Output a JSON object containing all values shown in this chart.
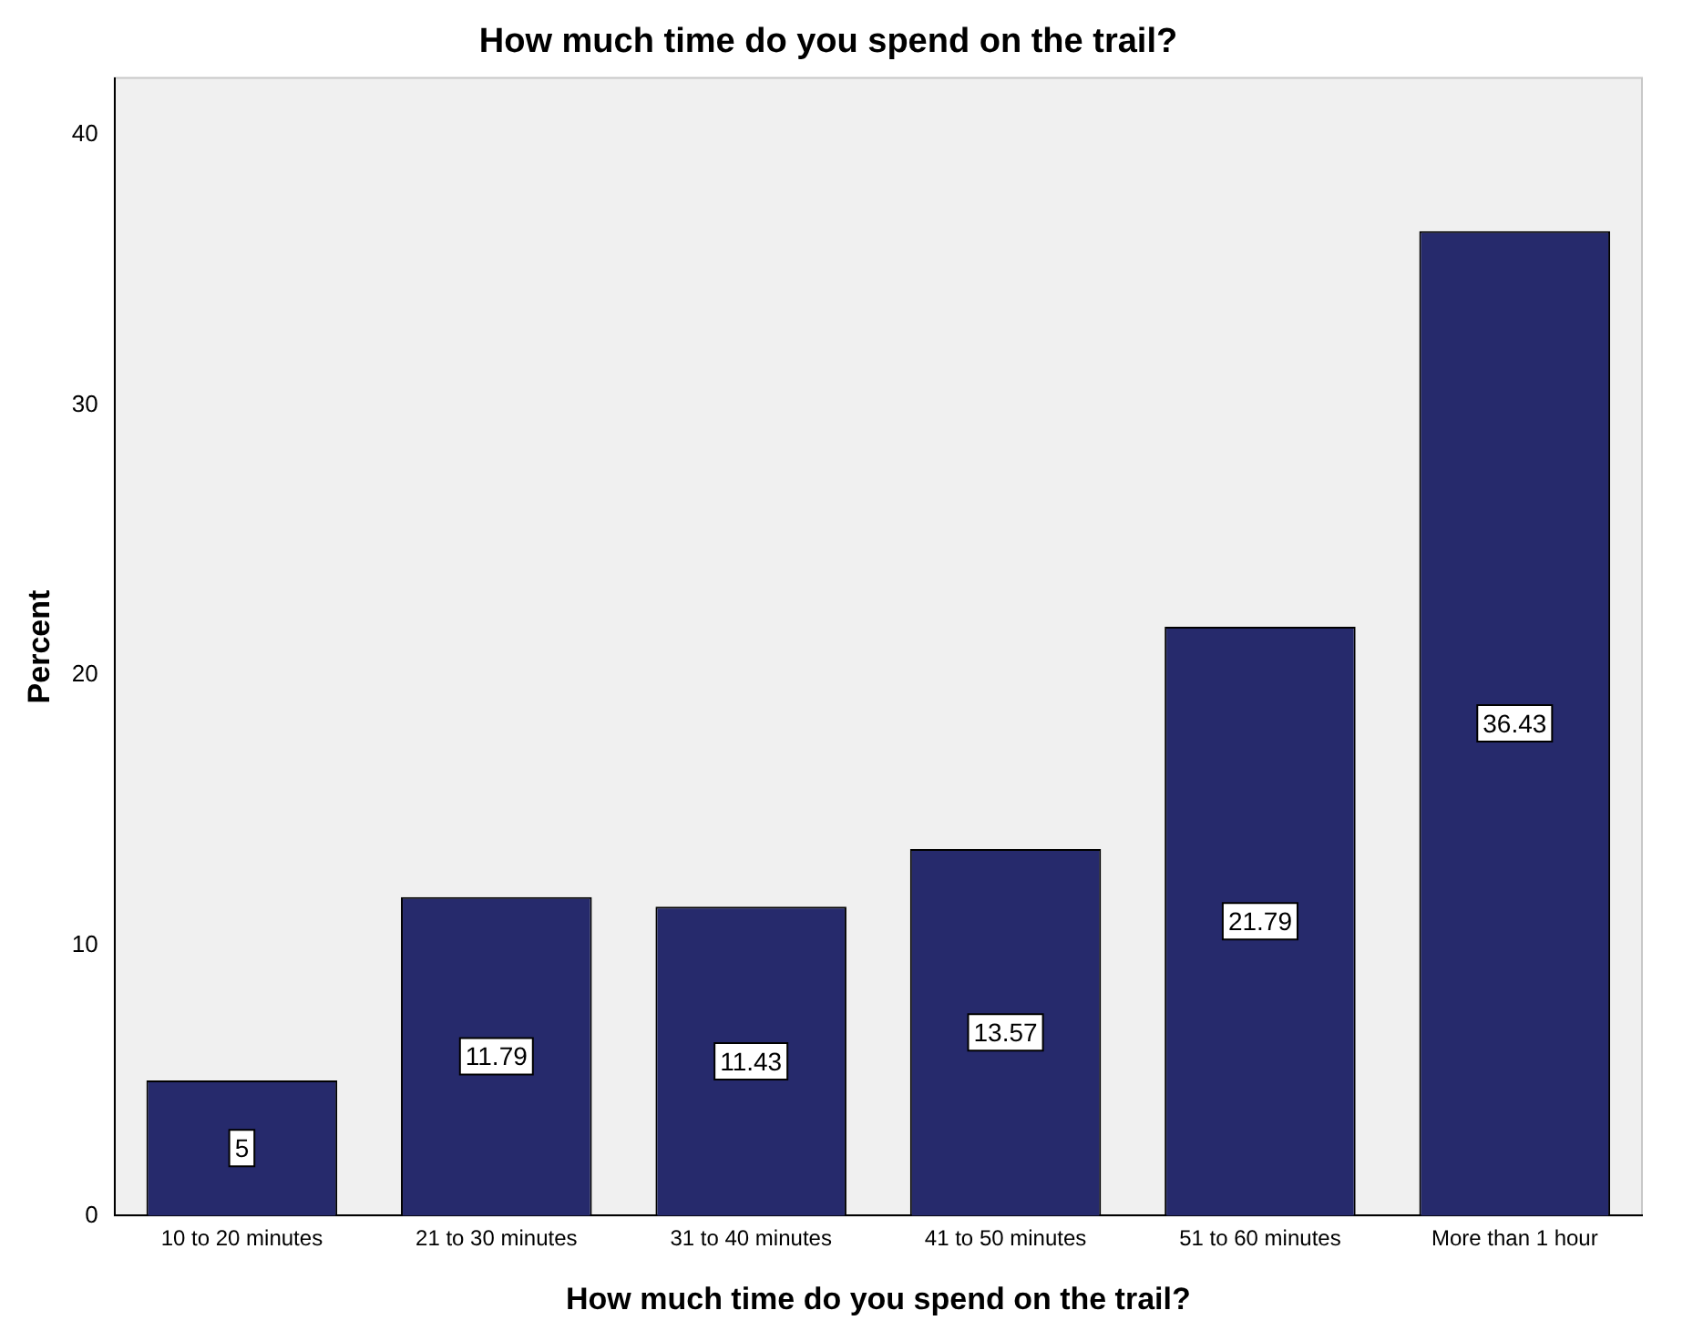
{
  "chart_data": {
    "type": "bar",
    "title": "How much time do you spend on the trail?",
    "xlabel": "How much time do you spend on the trail?",
    "ylabel": "Percent",
    "categories": [
      "10 to 20 minutes",
      "21 to 30 minutes",
      "31 to 40 minutes",
      "41 to 50 minutes",
      "51 to 60 minutes",
      "More than 1 hour"
    ],
    "values": [
      5,
      11.79,
      11.43,
      13.57,
      21.79,
      36.43
    ],
    "color": "#262a6c",
    "ylim": [
      0,
      42.1
    ],
    "yticks": [
      0,
      10,
      20,
      30,
      40
    ],
    "grid": false,
    "legend": false,
    "data_labels": true
  }
}
